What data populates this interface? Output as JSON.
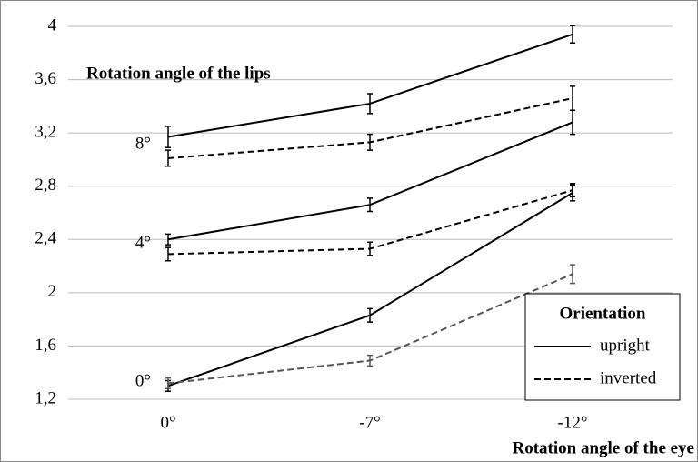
{
  "chart_data": {
    "type": "line",
    "title": "Rotation angle of the lips",
    "x_label": "Rotation angle of the eye",
    "categories": [
      "0°",
      "-7°",
      "-12°"
    ],
    "ylim": [
      1.2,
      4
    ],
    "yticks": [
      {
        "value": 1.2,
        "label": "1,2"
      },
      {
        "value": 1.6,
        "label": "1,6"
      },
      2,
      {
        "value": 2.4,
        "label": "2,4"
      },
      {
        "value": 2.8,
        "label": "2,8"
      },
      {
        "value": 3.2,
        "label": "3,2"
      },
      {
        "value": 3.6,
        "label": "3,6"
      },
      4
    ],
    "grid": true,
    "legend": {
      "title": "Orientation",
      "position": "lower right"
    },
    "series": [
      {
        "name": "upright",
        "dashed": false,
        "color": "#000000"
      },
      {
        "name": "inverted",
        "dashed": true,
        "color": "#000000"
      }
    ],
    "groups": [
      {
        "label": "8°",
        "lines": [
          {
            "values": [
              3.17,
              3.42,
              3.94
            ],
            "errors": [
              0.08,
              0.075,
              0.065
            ],
            "color": "#000000"
          },
          {
            "values": [
              3.01,
              3.13,
              3.46
            ],
            "errors": [
              0.06,
              0.06,
              0.09
            ],
            "color": "#000000"
          }
        ]
      },
      {
        "label": "4°",
        "lines": [
          {
            "values": [
              2.4,
              2.66,
              3.28
            ],
            "errors": [
              0.04,
              0.05,
              0.09
            ],
            "color": "#000000"
          },
          {
            "values": [
              2.29,
              2.33,
              2.77
            ],
            "errors": [
              0.05,
              0.05,
              0.05
            ],
            "color": "#000000"
          }
        ]
      },
      {
        "label": "0°",
        "lines": [
          {
            "values": [
              1.3,
              1.83,
              2.75
            ],
            "errors": [
              0.04,
              0.05,
              0.06
            ],
            "color": "#000000"
          },
          {
            "values": [
              1.32,
              1.49,
              2.14
            ],
            "errors": [
              0.04,
              0.04,
              0.07
            ],
            "color": "#555555"
          }
        ]
      }
    ]
  }
}
